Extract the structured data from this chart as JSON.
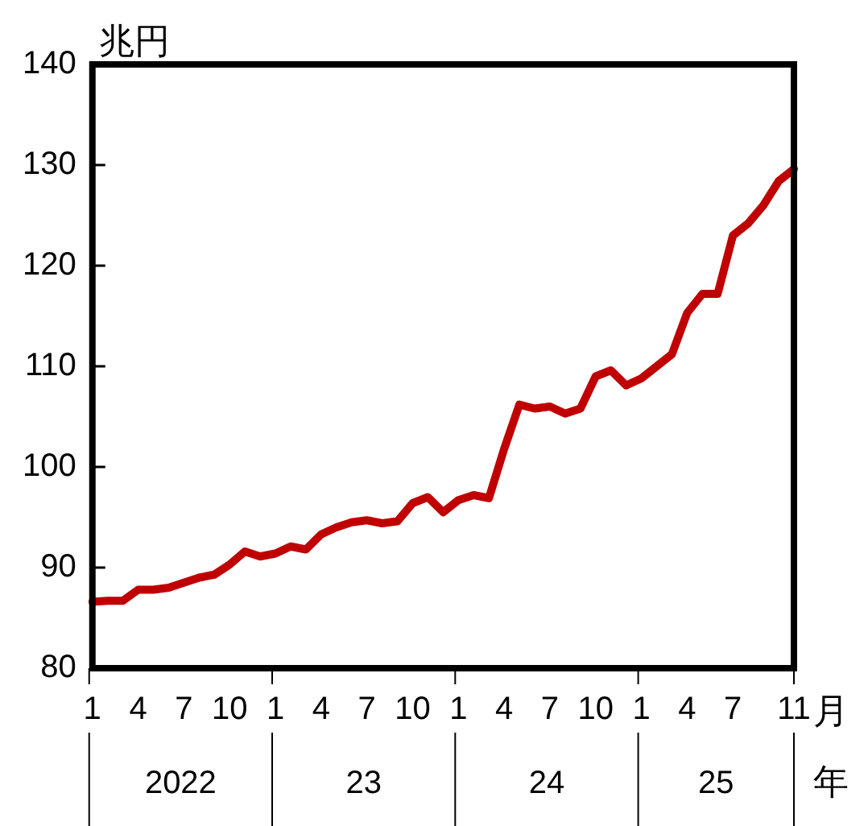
{
  "chart_data": {
    "type": "line",
    "ylabel": "兆円",
    "xlabel": "月",
    "categories": [
      "1",
      null,
      null,
      "4",
      null,
      null,
      "7",
      null,
      null,
      "10",
      null,
      null,
      "1",
      null,
      null,
      "4",
      null,
      null,
      "7",
      null,
      null,
      "10",
      null,
      null,
      "1",
      null,
      null,
      "4",
      null,
      null,
      "7",
      null,
      null,
      "10",
      null,
      null,
      "1",
      null,
      null,
      "4",
      null,
      null,
      "7",
      null,
      null,
      null,
      "11"
    ],
    "series": [
      {
        "color": "#c00000",
        "values": [
          86.6,
          86.7,
          86.7,
          87.8,
          87.8,
          88.0,
          88.5,
          89.0,
          89.3,
          90.3,
          91.6,
          91.1,
          91.4,
          92.1,
          91.8,
          93.3,
          94.0,
          94.5,
          94.7,
          94.4,
          94.6,
          96.4,
          97.0,
          95.5,
          96.7,
          97.2,
          96.9,
          101.8,
          106.2,
          105.8,
          106.0,
          105.3,
          105.8,
          109.0,
          109.6,
          108.1,
          108.8,
          110.0,
          111.2,
          115.3,
          117.2,
          117.2,
          123.0,
          124.2,
          126.0,
          128.4,
          129.6
        ]
      }
    ],
    "ylim": [
      80,
      140
    ],
    "yticks": [
      80,
      90,
      100,
      110,
      120,
      130,
      140
    ],
    "annotations": [
      "2022",
      "23",
      "24",
      "25",
      "年"
    ],
    "grid": false,
    "legend": false,
    "marker": "none",
    "line_style": "solid"
  }
}
